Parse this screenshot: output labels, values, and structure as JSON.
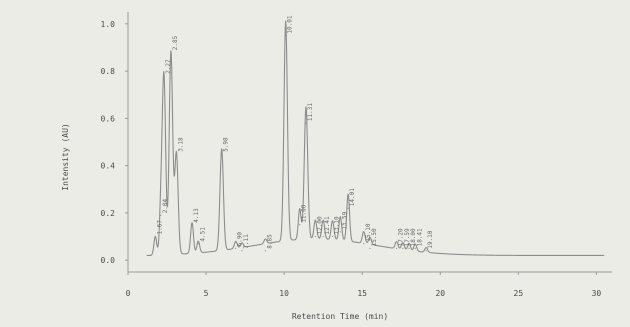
{
  "chart_data": {
    "type": "line",
    "title": "",
    "xlabel": "Retention Time (min)",
    "ylabel": "Intensity (AU)",
    "xlim": [
      0,
      31
    ],
    "ylim": [
      -0.05,
      1.05
    ],
    "x_ticks": [
      0,
      5,
      10,
      15,
      20,
      25,
      30
    ],
    "y_ticks": [
      0.0,
      0.2,
      0.4,
      0.6,
      0.8,
      1.0
    ],
    "y_tick_labels": [
      "0.0",
      "0.2",
      "0.4",
      "0.6",
      "0.8",
      "1.0"
    ],
    "grid": false,
    "colors": {
      "line": "#8c8c8c",
      "axis": "#9a9a9a",
      "background": "#ecece6"
    },
    "baseline": 0.02,
    "peaks": [
      {
        "x": 1.75,
        "y": 0.1,
        "label": "1.67"
      },
      {
        "x": 2.1,
        "y": 0.19,
        "label": "2.04"
      },
      {
        "x": 2.3,
        "y": 0.78,
        "label": "2.27"
      },
      {
        "x": 2.75,
        "y": 0.88,
        "label": "2.85"
      },
      {
        "x": 3.1,
        "y": 0.45,
        "label": "3.18"
      },
      {
        "x": 4.1,
        "y": 0.15,
        "label": "4.13"
      },
      {
        "x": 4.5,
        "y": 0.07,
        "label": "4.51"
      },
      {
        "x": 6.0,
        "y": 0.45,
        "label": "5.98"
      },
      {
        "x": 6.9,
        "y": 0.05,
        "label": "6.90"
      },
      {
        "x": 7.3,
        "y": 0.04,
        "label": "7.11"
      },
      {
        "x": 8.8,
        "y": 0.04,
        "label": "8.85"
      },
      {
        "x": 10.1,
        "y": 0.95,
        "label": "10.01"
      },
      {
        "x": 11.0,
        "y": 0.15,
        "label": "11.00"
      },
      {
        "x": 11.4,
        "y": 0.58,
        "label": "11.31"
      },
      {
        "x": 12.0,
        "y": 0.1,
        "label": "12.00"
      },
      {
        "x": 12.5,
        "y": 0.1,
        "label": "12.41"
      },
      {
        "x": 13.1,
        "y": 0.1,
        "label": "13.10"
      },
      {
        "x": 13.6,
        "y": 0.12,
        "label": "13.59"
      },
      {
        "x": 14.1,
        "y": 0.22,
        "label": "14.01"
      },
      {
        "x": 15.1,
        "y": 0.07,
        "label": "15.10"
      },
      {
        "x": 15.5,
        "y": 0.05,
        "label": "15.50"
      },
      {
        "x": 17.2,
        "y": 0.05,
        "label": "17.20"
      },
      {
        "x": 17.6,
        "y": 0.05,
        "label": "17.59"
      },
      {
        "x": 18.0,
        "y": 0.05,
        "label": "18.00"
      },
      {
        "x": 18.4,
        "y": 0.05,
        "label": "18.41"
      },
      {
        "x": 19.1,
        "y": 0.04,
        "label": "19.10"
      }
    ]
  }
}
